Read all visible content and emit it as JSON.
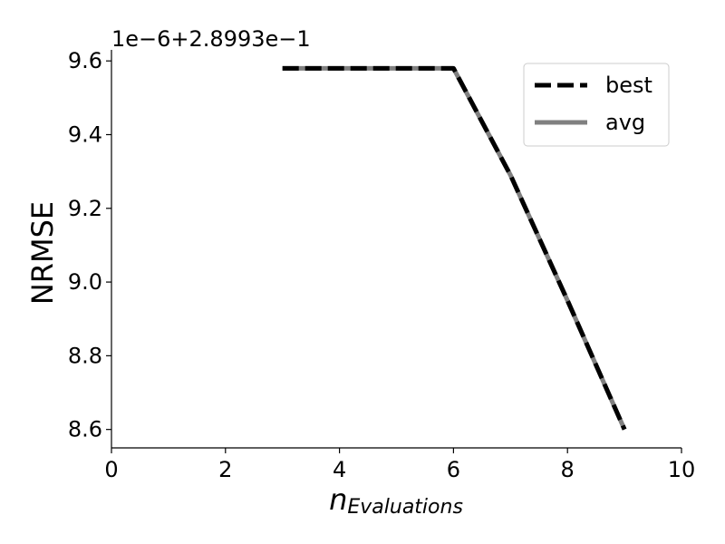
{
  "chart_data": {
    "type": "line",
    "title": "",
    "xlabel": {
      "base": "n",
      "subscript": "Evaluations"
    },
    "ylabel": "NRMSE",
    "y_offset_text": "1e−6+2.8993e−1",
    "xlim": [
      0,
      10
    ],
    "ylim": [
      8.55,
      9.63
    ],
    "x_ticks": [
      0,
      2,
      4,
      6,
      8,
      10
    ],
    "x_tick_labels": [
      "0",
      "2",
      "4",
      "6",
      "8",
      "10"
    ],
    "y_ticks": [
      8.6,
      8.8,
      9.0,
      9.2,
      9.4,
      9.6
    ],
    "y_tick_labels": [
      "8.6",
      "8.8",
      "9.0",
      "9.2",
      "9.4",
      "9.6"
    ],
    "grid": false,
    "legend_position": "top-right",
    "series": [
      {
        "name": "best",
        "style": "dashed",
        "color": "#000000",
        "x": [
          3,
          4,
          5,
          6,
          7,
          8,
          9
        ],
        "y": [
          9.58,
          9.58,
          9.58,
          9.58,
          9.29,
          8.95,
          8.6
        ]
      },
      {
        "name": "avg",
        "style": "solid",
        "color": "#808080",
        "x": [
          3,
          4,
          5,
          6,
          7,
          8,
          9
        ],
        "y": [
          9.58,
          9.58,
          9.58,
          9.58,
          9.29,
          8.95,
          8.6
        ]
      }
    ]
  }
}
